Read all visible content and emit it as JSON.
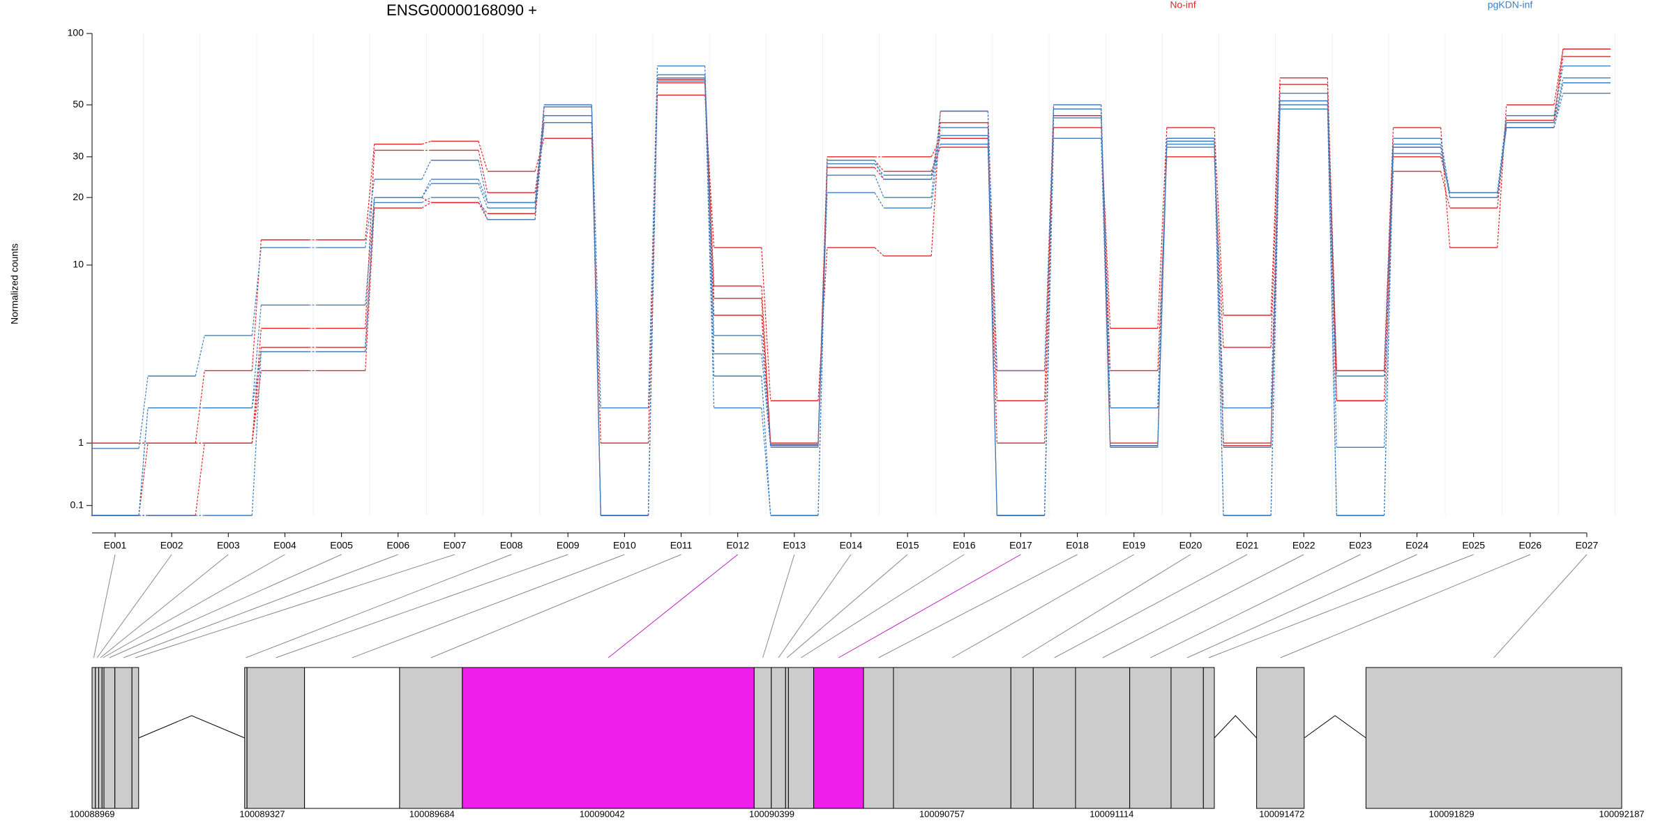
{
  "chart_data": {
    "type": "exon-line",
    "title": "ENSG00000168090 +",
    "y_label": "Normalized counts",
    "yscale": "log1p",
    "ylim": [
      0,
      100
    ],
    "yticks": [
      0.1,
      1,
      10,
      20,
      30,
      50,
      100
    ],
    "grid": true,
    "legend": [
      {
        "label": "No-inf",
        "color": "#e0262a"
      },
      {
        "label": "pgKDN-inf",
        "color": "#3d7fc0"
      }
    ],
    "categories": [
      "E001",
      "E002",
      "E003",
      "E004",
      "E005",
      "E006",
      "E007",
      "E008",
      "E009",
      "E010",
      "E011",
      "E012",
      "E013",
      "E014",
      "E015",
      "E016",
      "E017",
      "E018",
      "E019",
      "E020",
      "E021",
      "E022",
      "E023",
      "E024",
      "E025",
      "E026",
      "E027"
    ],
    "series": [
      {
        "color": "#e0262a",
        "values": [
          1,
          1,
          3,
          13,
          13,
          34,
          35,
          26,
          36,
          1,
          55,
          12,
          2,
          12,
          11,
          47,
          3,
          40,
          5,
          40,
          5.8,
          65,
          3,
          40,
          12,
          50,
          86
        ]
      },
      {
        "color": "#e0262a",
        "values": [
          1,
          1,
          1,
          5,
          5,
          32,
          32,
          21,
          42,
          0,
          65,
          8,
          1,
          30,
          30,
          36,
          2,
          45,
          3,
          30,
          4,
          61,
          2,
          26,
          18,
          43,
          86
        ]
      },
      {
        "color": "#e0262a",
        "values": [
          0,
          1,
          1,
          4,
          4,
          20,
          19,
          17,
          49,
          0,
          64,
          7,
          1,
          29,
          26,
          33,
          1,
          50,
          1,
          36,
          1,
          52,
          2,
          30,
          21,
          42,
          80
        ]
      },
      {
        "color": "#e0262a",
        "values": [
          0,
          0,
          1,
          3,
          3,
          18,
          19,
          16,
          50,
          0,
          62,
          5.8,
          0.97,
          27,
          24,
          42,
          0,
          48,
          0.95,
          35,
          0.95,
          50,
          3,
          33,
          20,
          40,
          62
        ]
      },
      {
        "color": "#3d7fc0",
        "values": [
          0.9,
          2.8,
          4.6,
          12,
          12,
          24,
          29,
          19,
          50,
          1.8,
          73,
          4.6,
          0.95,
          25,
          20,
          47,
          3,
          50,
          1.8,
          36,
          1.8,
          56,
          2.8,
          36,
          21,
          45,
          73
        ]
      },
      {
        "color": "#3d7fc0",
        "values": [
          0,
          1.8,
          1.8,
          6.5,
          6.5,
          20,
          24,
          19,
          49,
          0,
          67,
          3.7,
          0.92,
          21,
          18,
          40,
          0,
          48,
          1.8,
          35,
          0.92,
          52,
          0.92,
          34,
          20,
          42,
          65
        ]
      },
      {
        "color": "#3d7fc0",
        "values": [
          0,
          1.8,
          1.8,
          3.8,
          3.8,
          20,
          23,
          18,
          45,
          0,
          65,
          2.8,
          0,
          28,
          25,
          37,
          0,
          44,
          0.95,
          34,
          0,
          50,
          0,
          33,
          20,
          40,
          62
        ]
      },
      {
        "color": "#3d7fc0",
        "values": [
          0,
          0,
          0,
          3.8,
          3.8,
          19,
          20,
          16,
          42,
          0,
          63,
          1.8,
          0,
          29,
          24,
          34,
          0,
          36,
          0.92,
          33,
          0,
          48,
          0,
          31,
          21,
          40,
          56
        ]
      }
    ]
  },
  "gene_model": {
    "xlim": [
      100088969,
      100092187
    ],
    "xticks": [
      100088969,
      100089327,
      100089684,
      100090042,
      100090399,
      100090757,
      100091114,
      100091472,
      100091829,
      100092187
    ],
    "exons": [
      {
        "start": 100088969,
        "end": 100088976,
        "color": "#cccccc"
      },
      {
        "start": 100088976,
        "end": 100088983,
        "color": "#cccccc"
      },
      {
        "start": 100088983,
        "end": 100088990,
        "color": "#cccccc"
      },
      {
        "start": 100088990,
        "end": 100088994,
        "color": "#cccccc"
      },
      {
        "start": 100088994,
        "end": 100089017,
        "color": "#cccccc"
      },
      {
        "start": 100089017,
        "end": 100089053,
        "color": "#cccccc"
      },
      {
        "start": 100089053,
        "end": 100089067,
        "color": "#cccccc"
      },
      {
        "start": 100089290,
        "end": 100089295,
        "color": "#cccccc"
      },
      {
        "start": 100089295,
        "end": 100089416,
        "color": "#cccccc"
      },
      {
        "start": 100089416,
        "end": 100089616,
        "color": "#ffffff"
      },
      {
        "start": 100089616,
        "end": 100089748,
        "color": "#cccccc"
      },
      {
        "start": 100089748,
        "end": 100090362,
        "color": "#f01eea"
      },
      {
        "start": 100090362,
        "end": 100090398,
        "color": "#cccccc"
      },
      {
        "start": 100090398,
        "end": 100090428,
        "color": "#cccccc"
      },
      {
        "start": 100090428,
        "end": 100090434,
        "color": "#cccccc"
      },
      {
        "start": 100090434,
        "end": 100090487,
        "color": "#cccccc"
      },
      {
        "start": 100090487,
        "end": 100090592,
        "color": "#f01eea"
      },
      {
        "start": 100090592,
        "end": 100090655,
        "color": "#cccccc"
      },
      {
        "start": 100090655,
        "end": 100090902,
        "color": "#cccccc"
      },
      {
        "start": 100090902,
        "end": 100090949,
        "color": "#cccccc"
      },
      {
        "start": 100090949,
        "end": 100091038,
        "color": "#cccccc"
      },
      {
        "start": 100091038,
        "end": 100091152,
        "color": "#cccccc"
      },
      {
        "start": 100091152,
        "end": 100091239,
        "color": "#cccccc"
      },
      {
        "start": 100091239,
        "end": 100091307,
        "color": "#cccccc"
      },
      {
        "start": 100091307,
        "end": 100091330,
        "color": "#cccccc"
      },
      {
        "start": 100091419,
        "end": 100091519,
        "color": "#cccccc"
      },
      {
        "start": 100091649,
        "end": 100092187,
        "color": "#cccccc"
      }
    ]
  }
}
